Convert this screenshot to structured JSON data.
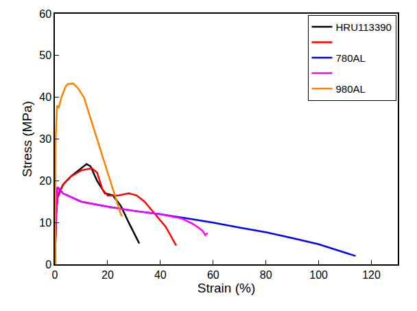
{
  "chart_data": {
    "type": "line",
    "x_label": "Strain (%)",
    "y_label": "Stress (MPa)",
    "xlim": [
      0,
      130
    ],
    "xticks": [
      0,
      20,
      40,
      60,
      80,
      100,
      120
    ],
    "ylim": [
      0,
      60
    ],
    "yticks": [
      0,
      10,
      20,
      30,
      40,
      50,
      60
    ],
    "grid": false,
    "legend": "upper right",
    "series": [
      {
        "name": "HRU113390",
        "color": "#000000",
        "x": [
          0,
          0.5,
          1,
          3,
          6,
          9,
          12,
          13.5,
          16,
          19,
          22,
          25,
          28,
          32
        ],
        "values": [
          0,
          12,
          16,
          19,
          21,
          22.5,
          24,
          23.5,
          20,
          17,
          16.5,
          14,
          10,
          5
        ]
      },
      {
        "color": "#ff0000",
        "x": [
          0,
          0.5,
          1,
          3,
          6,
          10,
          14,
          16,
          18,
          20,
          24,
          28,
          31,
          34,
          38,
          42,
          46
        ],
        "values": [
          0,
          12,
          16,
          19,
          21,
          22.5,
          23,
          22,
          18,
          16.5,
          16.5,
          17,
          16.5,
          15,
          12,
          9,
          4.5
        ]
      },
      {
        "name": "780AL",
        "color": "#0000ff",
        "x": [
          0,
          0.3,
          1,
          3,
          10,
          20,
          30,
          40,
          50,
          60,
          70,
          80,
          90,
          100,
          110,
          114
        ],
        "values": [
          0,
          10,
          18.5,
          17,
          15,
          13.8,
          12.8,
          12,
          11,
          10,
          8.8,
          7.7,
          6.3,
          4.8,
          2.8,
          2
        ]
      },
      {
        "color": "#ff00ff",
        "x": [
          0,
          0.3,
          1,
          2,
          3,
          10,
          20,
          30,
          40,
          48,
          52,
          54,
          56,
          57,
          58
        ],
        "values": [
          0,
          10,
          18.5,
          18,
          17,
          15,
          13.8,
          12.8,
          12,
          11,
          9.8,
          9,
          8,
          7,
          7.5
        ]
      },
      {
        "name": "980AL",
        "color": "#ff8000",
        "x": [
          0,
          0.3,
          0.8,
          1.5,
          2.5,
          4,
          5,
          7,
          9,
          11,
          13,
          15,
          17,
          19,
          21,
          23,
          25,
          25.5
        ],
        "values": [
          0,
          30,
          38,
          37.5,
          40,
          42.5,
          43.2,
          43.3,
          42,
          40,
          36,
          32,
          28,
          24,
          20,
          16,
          12,
          11.5
        ]
      }
    ]
  }
}
